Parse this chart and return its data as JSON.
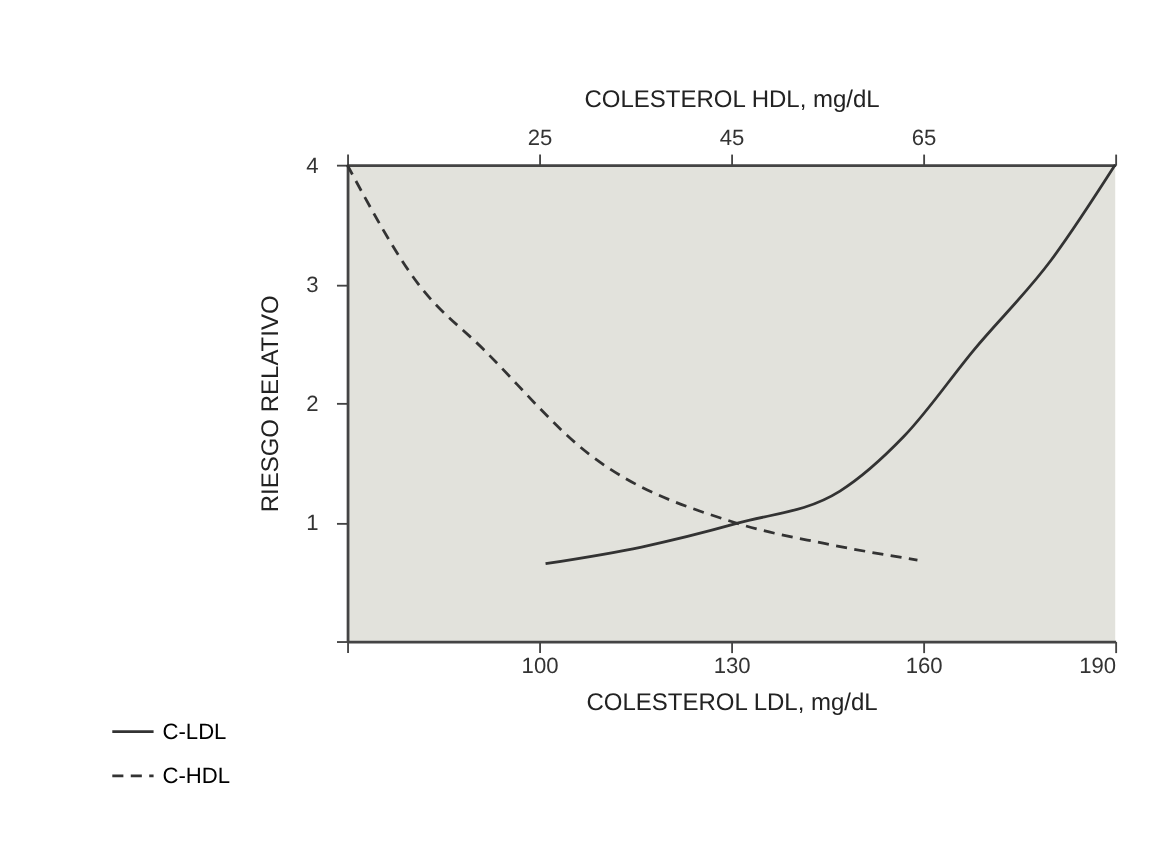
{
  "chart_data": {
    "type": "line",
    "xlabel": "COLESTEROL LDL, mg/dL",
    "x2label": "COLESTEROL HDL, mg/dL",
    "ylabel": "RIESGO RELATIVO",
    "xlim": [
      70,
      190
    ],
    "xticks": [
      {
        "value": 70,
        "label": null
      },
      100,
      130,
      160,
      190
    ],
    "x2lim": [
      5,
      85
    ],
    "x2ticks": [
      {
        "value": 5,
        "label": null
      },
      25,
      45,
      65,
      {
        "value": 85,
        "label": null
      }
    ],
    "ylim": [
      0,
      4
    ],
    "yticks": [
      {
        "value": 0,
        "label": null
      },
      1,
      2,
      3,
      4
    ],
    "grid": false,
    "legend": "bottom left",
    "marker": "none",
    "series": [
      {
        "name": "C-LDL",
        "color": "#333333",
        "line_style": "solid",
        "x": [
          101,
          116,
          131,
          147,
          157,
          168,
          180,
          190
        ],
        "values": [
          0.65,
          0.79,
          0.99,
          1.26,
          1.72,
          2.45,
          3.2,
          4
        ]
      },
      {
        "name": "C-HDL",
        "color": "#333333",
        "line_style": "dashed",
        "axis": "x2",
        "x": [
          5,
          12.4,
          19.2,
          30.2,
          45.6,
          54.7,
          64.4
        ],
        "values": [
          4,
          3,
          2.45,
          1.57,
          0.99,
          0.82,
          0.68
        ]
      }
    ]
  }
}
